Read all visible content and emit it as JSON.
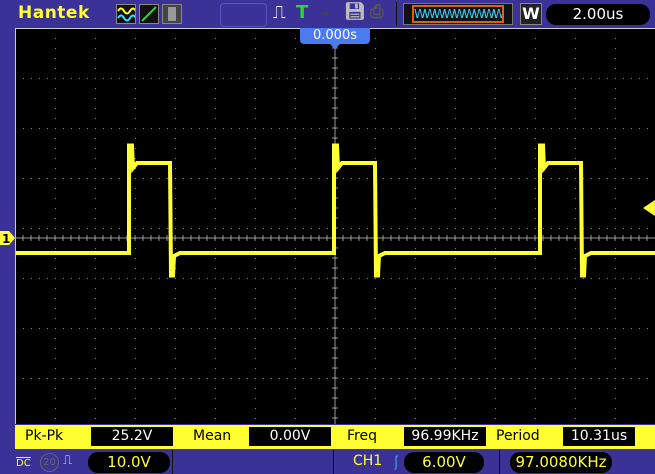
{
  "header": {
    "brand": "Hantek",
    "icons": [
      "dual-wave-icon",
      "line-icon",
      "persistence-icon",
      "pulse-icon",
      "trigger-t-icon",
      "key-icon",
      "save-icon",
      "print-icon"
    ],
    "trigger_glyph": "T",
    "window_button": "W",
    "timebase": "2.00us"
  },
  "trigger_position": "0.000s",
  "measurements": [
    {
      "label": "Pk-Pk",
      "value": "25.2V"
    },
    {
      "label": "Mean",
      "value": "0.00V"
    },
    {
      "label": "Freq",
      "value": "96.99KHz"
    },
    {
      "label": "Period",
      "value": "10.31us"
    }
  ],
  "footer": {
    "coupling": "DC",
    "bw_limit": "20",
    "ch1_scale": "10.0V",
    "trigger_source": "CH1",
    "trigger_level": "6.00V",
    "trigger_freq": "97.0080KHz"
  },
  "channel_marker": "1",
  "colors": {
    "ch1": "#ffff33",
    "background": "#3a3296",
    "trigger_marker": "#4b7bf0"
  },
  "waveform": {
    "volts_per_div": 10,
    "us_per_div": 2,
    "low_level_v": -3,
    "high_level_v": 15,
    "overshoot_v": 18.5,
    "undershoot_v": -7.5,
    "rising_edges_us": [
      -10.3,
      -0.05,
      10.25
    ],
    "falling_edges_us": [
      -8.25,
      2.0,
      12.3
    ],
    "trigger_level_v": 6
  }
}
